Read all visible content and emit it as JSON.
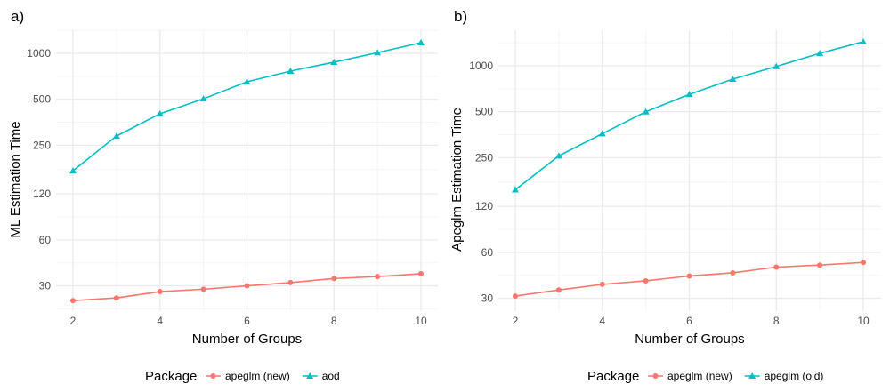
{
  "colors": {
    "new": "#F8766D",
    "old": "#00BFC4",
    "grid_major": "#EBEBEB",
    "grid_minor": "#F5F5F5"
  },
  "chart_data": [
    {
      "type": "line",
      "title": "a)",
      "xlabel": "Number of Groups",
      "ylabel": "ML Estimation Time",
      "yscale": "log",
      "xticks": [
        2,
        4,
        6,
        8,
        10
      ],
      "yticks": [
        30,
        60,
        120,
        250,
        500,
        1000
      ],
      "x": [
        2,
        3,
        4,
        5,
        6,
        7,
        8,
        9,
        10
      ],
      "legend_title": "Package",
      "legend_position": "bottom",
      "series": [
        {
          "name": "apeglm (new)",
          "marker": "circle",
          "values": [
            24,
            25,
            27.5,
            28.5,
            30,
            31.5,
            33.5,
            34.5,
            36
          ]
        },
        {
          "name": "aod",
          "marker": "triangle",
          "values": [
            170,
            287,
            402,
            504,
            651,
            765,
            875,
            1010,
            1175
          ]
        }
      ]
    },
    {
      "type": "line",
      "title": "b)",
      "xlabel": "Number of Groups",
      "ylabel": "Apeglm Estimation Time",
      "yscale": "log",
      "xticks": [
        2,
        4,
        6,
        8,
        10
      ],
      "yticks": [
        30,
        60,
        120,
        250,
        500,
        1000
      ],
      "x": [
        2,
        3,
        4,
        5,
        6,
        7,
        8,
        9,
        10
      ],
      "legend_title": "Package",
      "legend_position": "bottom",
      "series": [
        {
          "name": "apeglm (new)",
          "marker": "circle",
          "values": [
            31,
            34,
            37,
            39,
            42,
            44,
            48,
            49.5,
            51.5
          ]
        },
        {
          "name": "apeglm (old)",
          "marker": "triangle",
          "values": [
            154,
            257,
            359,
            500,
            650,
            818,
            990,
            1207,
            1437
          ]
        }
      ]
    }
  ]
}
